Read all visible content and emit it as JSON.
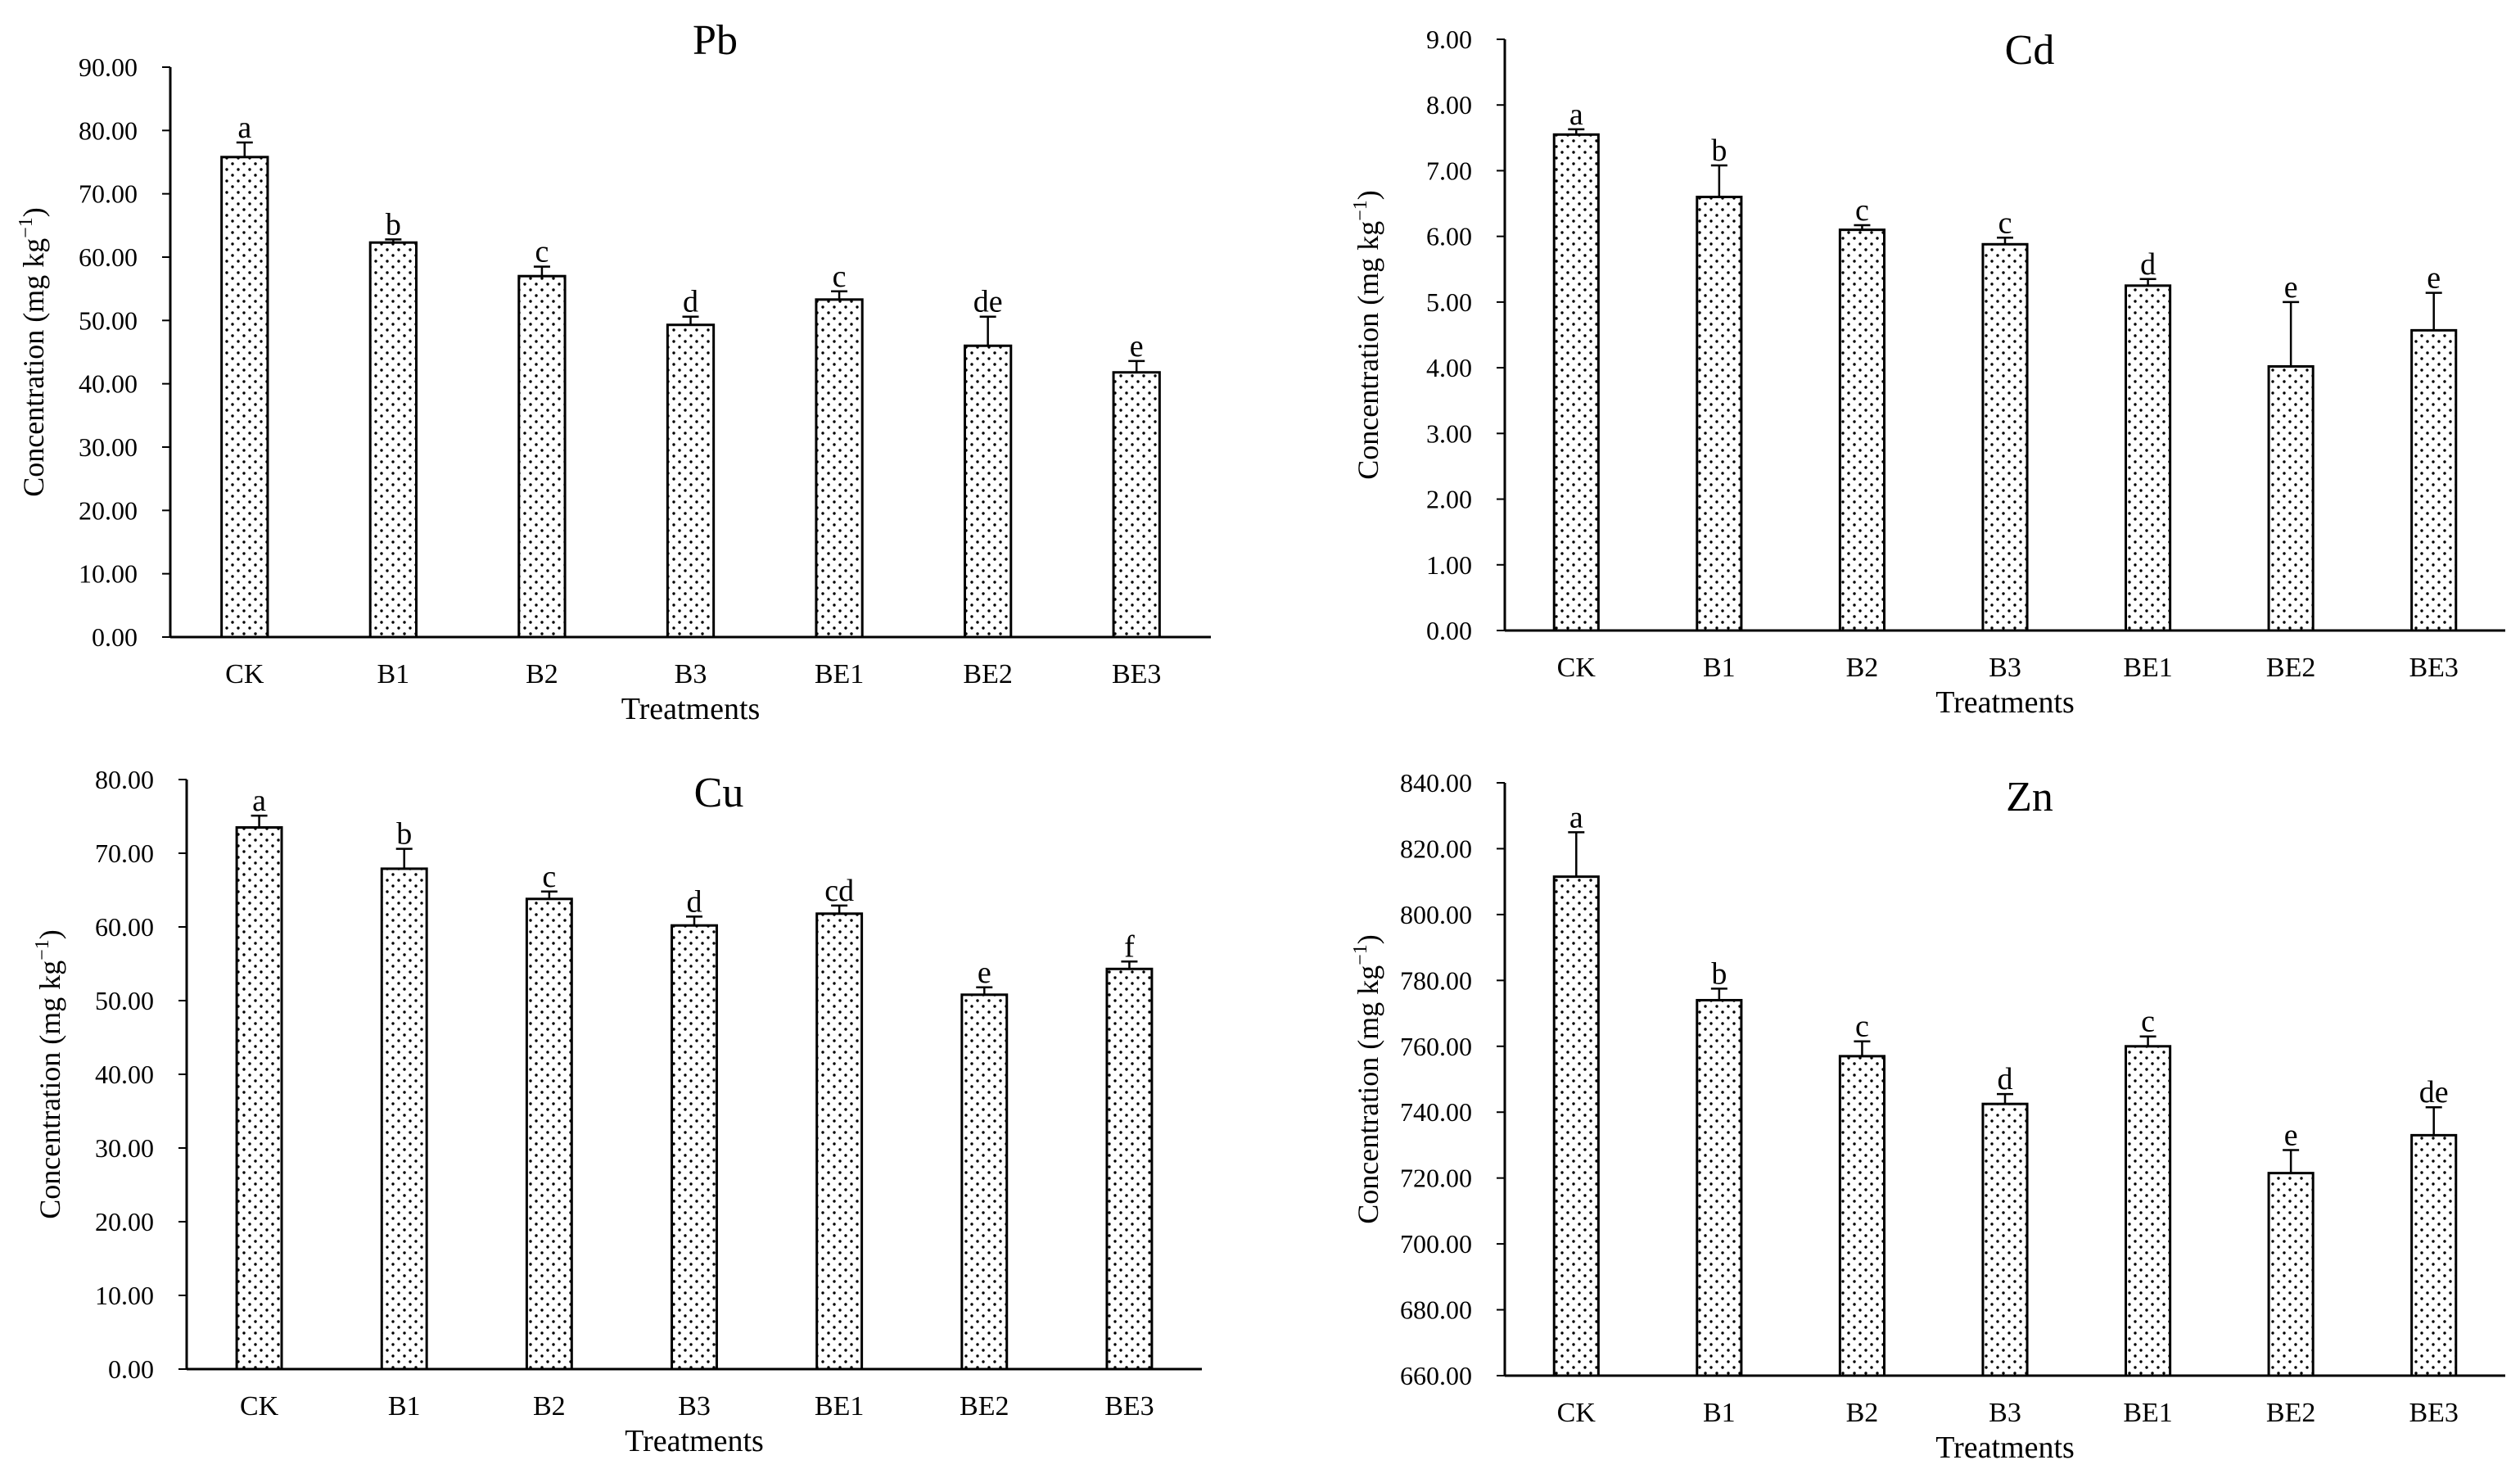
{
  "chart_data": [
    {
      "type": "bar",
      "title": "Pb",
      "xlabel": "Treatments",
      "ylabel": "Concentration (mg kg",
      "ylabel_sup": "−1",
      "ylabel_close": ")",
      "categories": [
        "CK",
        "B1",
        "B2",
        "B3",
        "BE1",
        "BE2",
        "BE3"
      ],
      "values": [
        75.8,
        62.3,
        57.0,
        49.3,
        53.3,
        46.0,
        41.8
      ],
      "errors": [
        2.3,
        0.5,
        1.5,
        1.3,
        1.3,
        4.6,
        1.8
      ],
      "letters": [
        "a",
        "b",
        "c",
        "d",
        "c",
        "de",
        "e"
      ],
      "ylim": [
        0,
        90
      ],
      "yticks": [
        "0.00",
        "10.00",
        "20.00",
        "30.00",
        "40.00",
        "50.00",
        "60.00",
        "70.00",
        "80.00",
        "90.00"
      ]
    },
    {
      "type": "bar",
      "title": "Cd",
      "xlabel": "Treatments",
      "ylabel": "Concentration (mg kg",
      "ylabel_sup": "−1",
      "ylabel_close": ")",
      "categories": [
        "CK",
        "B1",
        "B2",
        "B3",
        "BE1",
        "BE2",
        "BE3"
      ],
      "values": [
        7.55,
        6.6,
        6.1,
        5.88,
        5.25,
        4.02,
        4.57
      ],
      "errors": [
        0.08,
        0.48,
        0.07,
        0.1,
        0.1,
        0.98,
        0.57
      ],
      "letters": [
        "a",
        "b",
        "c",
        "c",
        "d",
        "e",
        "e"
      ],
      "ylim": [
        0,
        9
      ],
      "yticks": [
        "0.00",
        "1.00",
        "2.00",
        "3.00",
        "4.00",
        "5.00",
        "6.00",
        "7.00",
        "8.00",
        "9.00"
      ]
    },
    {
      "type": "bar",
      "title": "Cu",
      "xlabel": "Treatments",
      "ylabel": "Concentration (mg kg",
      "ylabel_sup": "−1",
      "ylabel_close": ")",
      "categories": [
        "CK",
        "B1",
        "B2",
        "B3",
        "BE1",
        "BE2",
        "BE3"
      ],
      "values": [
        73.5,
        67.9,
        63.8,
        60.2,
        61.8,
        50.8,
        54.3
      ],
      "errors": [
        1.6,
        2.7,
        1.0,
        1.2,
        1.1,
        1.0,
        1.0
      ],
      "letters": [
        "a",
        "b",
        "c",
        "d",
        "cd",
        "e",
        "f"
      ],
      "ylim": [
        0,
        80
      ],
      "yticks": [
        "0.00",
        "10.00",
        "20.00",
        "30.00",
        "40.00",
        "50.00",
        "60.00",
        "70.00",
        "80.00"
      ]
    },
    {
      "type": "bar",
      "title": "Zn",
      "xlabel": "Treatments",
      "ylabel": "Concentration (mg kg",
      "ylabel_sup": "−1",
      "ylabel_close": ")",
      "categories": [
        "CK",
        "B1",
        "B2",
        "B3",
        "BE1",
        "BE2",
        "BE3"
      ],
      "values": [
        811.5,
        774.0,
        757.0,
        742.5,
        760.0,
        721.5,
        733.0
      ],
      "errors": [
        13.5,
        3.5,
        4.5,
        3.0,
        3.0,
        7.0,
        8.5
      ],
      "letters": [
        "a",
        "b",
        "c",
        "d",
        "c",
        "e",
        "de"
      ],
      "ylim": [
        660,
        840
      ],
      "yticks": [
        "660.00",
        "680.00",
        "700.00",
        "720.00",
        "740.00",
        "760.00",
        "780.00",
        "800.00",
        "820.00",
        "840.00"
      ]
    }
  ]
}
